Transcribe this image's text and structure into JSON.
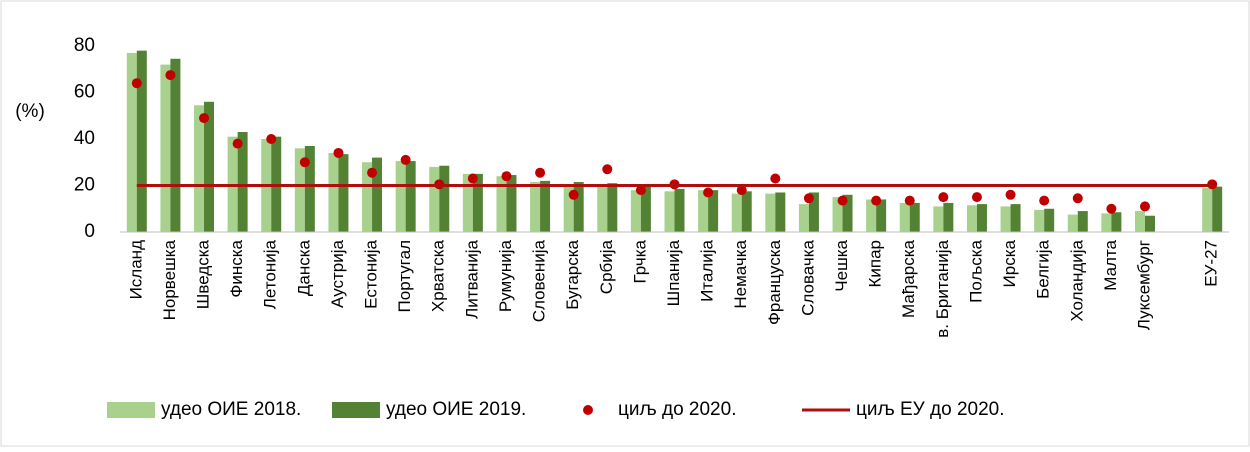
{
  "chart_data": {
    "type": "bar",
    "y_label": "(%)",
    "categories": [
      "Исланд",
      "Норвешка",
      "Шведска",
      "Финска",
      "Летонија",
      "Данска",
      "Аустрија",
      "Естонија",
      "Португал",
      "Хрватска",
      "Литванија",
      "Румунија",
      "Словенија",
      "Бугарска",
      "Србија",
      "Грчка",
      "Шпанија",
      "Италија",
      "Немачка",
      "Француска",
      "Словачка",
      "Чешка",
      "Кипар",
      "Мађарска",
      "в. Британија",
      "Пољска",
      "Ирска",
      "Белгија",
      "Холандија",
      "Малта",
      "Луксембург",
      null,
      "ЕУ-27"
    ],
    "series": [
      {
        "name": "удео ОИЕ 2018.",
        "type": "bar",
        "color": "#a9d18e",
        "values": [
          77,
          72,
          54.5,
          41,
          40,
          36,
          34,
          30,
          30.5,
          28,
          25,
          24,
          21.5,
          20.5,
          20.5,
          18,
          17.5,
          18,
          16.5,
          16.5,
          12,
          15,
          14,
          12.5,
          11,
          11.5,
          11,
          9.5,
          7.5,
          8,
          9,
          null,
          19
        ]
      },
      {
        "name": "удео ОИЕ 2019.",
        "type": "bar",
        "color": "#548235",
        "values": [
          78,
          74.5,
          56,
          43,
          41,
          37,
          33.5,
          32,
          30.5,
          28.5,
          25,
          24.5,
          22,
          21.5,
          21,
          19.5,
          18.5,
          18,
          17.5,
          17,
          17,
          16,
          14,
          12.5,
          12.5,
          12,
          12,
          10,
          9,
          8.5,
          7,
          null,
          19.5
        ]
      },
      {
        "name": "циљ до 2020.",
        "type": "scatter",
        "color": "#c00000",
        "values": [
          64,
          67.5,
          49,
          38,
          40,
          30,
          34,
          25.5,
          31,
          20.5,
          23,
          24,
          25.5,
          16,
          27,
          18,
          20.5,
          17,
          18,
          23,
          14.5,
          13.5,
          13.5,
          13.5,
          15,
          15,
          16,
          13.5,
          14.5,
          10,
          11,
          null,
          20.5
        ]
      },
      {
        "name": "циљ ЕУ до 2020.",
        "type": "hline",
        "color": "#b00d0d",
        "value": 20
      }
    ],
    "ylim": [
      0,
      80
    ],
    "yticks": [
      0,
      20,
      40,
      60,
      80
    ],
    "grid": false
  }
}
